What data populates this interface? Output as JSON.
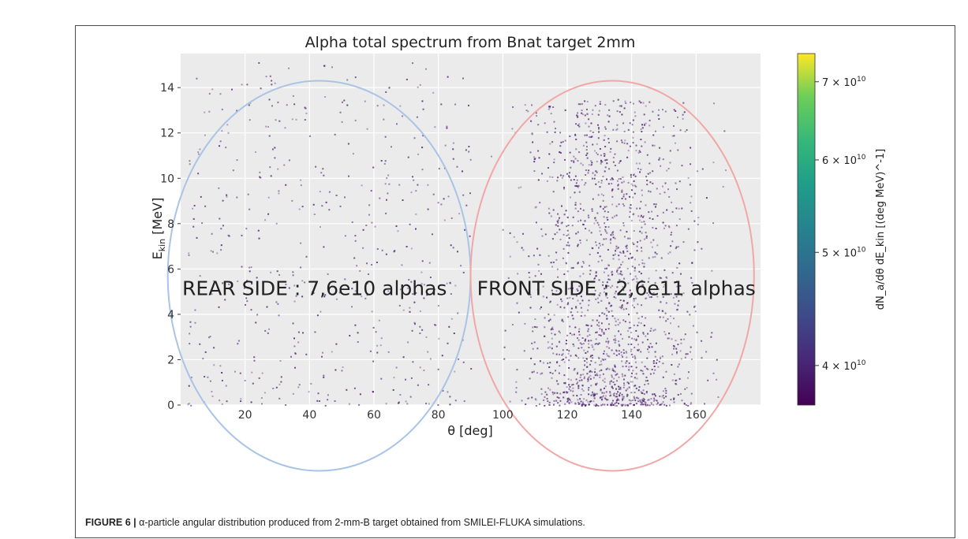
{
  "figure": {
    "label": "FIGURE 6 |",
    "caption": " α-particle angular distribution produced from 2-mm-B target obtained from SMILEI-FLUKA simulations."
  },
  "chart_data": {
    "type": "scatter",
    "title": "Alpha total spectrum from Bnat target 2mm",
    "xlabel": "θ [deg]",
    "ylabel": "E_kin [MeV]",
    "ylabel_main": "E",
    "ylabel_sub": "kin",
    "ylabel_unit": " [MeV]",
    "xlim": [
      0,
      180
    ],
    "ylim": [
      0,
      15.5
    ],
    "xticks": [
      20,
      40,
      60,
      80,
      100,
      120,
      140,
      160
    ],
    "yticks": [
      0,
      2,
      4,
      6,
      8,
      10,
      12,
      14
    ],
    "grid": true,
    "annotations": [
      {
        "text": "REAR SIDE : 7,6e10 alphas",
        "region": "rear",
        "theta_center": 43,
        "theta_halfwidth": 47,
        "e_center": 5.7,
        "e_halfheight": 8.6,
        "color": "#a9c4e6"
      },
      {
        "text": "FRONT SIDE : 2,6e11 alphas",
        "region": "front",
        "theta_center": 134,
        "theta_halfwidth": 44,
        "e_center": 5.7,
        "e_halfheight": 8.6,
        "color": "#f2a7a7"
      }
    ],
    "colorbar": {
      "label": "dN_a/dθ dE_kin [(deg MeV)^-1]",
      "label_text": "dN_a/dθ dE_kin  [(deg MeV)^-1]",
      "scale": "log",
      "min": 37000000000.0,
      "max": 74000000000.0,
      "colormap": "viridis",
      "ticks": [
        {
          "value": 70000000000.0,
          "mantissa": "7 × 10",
          "exp": "10"
        },
        {
          "value": 60000000000.0,
          "mantissa": "6 × 10",
          "exp": "10"
        },
        {
          "value": 50000000000.0,
          "mantissa": "5 × 10",
          "exp": "10"
        },
        {
          "value": 40000000000.0,
          "mantissa": "4 × 10",
          "exp": "10"
        }
      ]
    },
    "series": [
      {
        "name": "rear side alphas",
        "total": "7,6e10",
        "theta_range": [
          2,
          90
        ],
        "e_range": [
          0,
          15.2
        ],
        "count": 520,
        "color": "#4b1f6f"
      },
      {
        "name": "front side alphas",
        "total": "2,6e11",
        "theta_range": [
          92,
          178
        ],
        "e_range": [
          0,
          13.5
        ],
        "count": 1700,
        "color": "#4b1f6f"
      }
    ]
  }
}
